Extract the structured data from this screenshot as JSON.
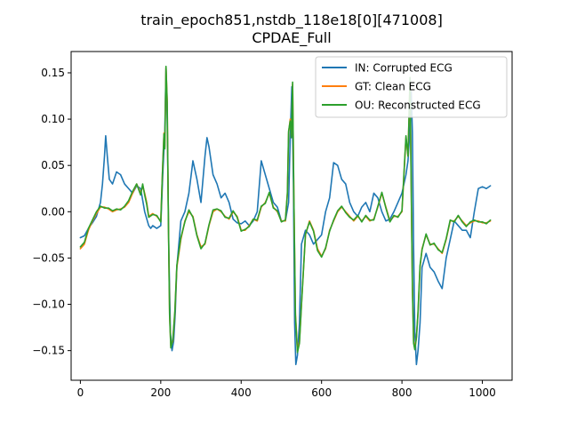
{
  "chart_data": {
    "type": "line",
    "title_line1": "train_epoch851,nstdb_118e18[0][471008]",
    "title_line2": "CPDAE_Full",
    "xlabel": "",
    "ylabel": "",
    "xlim": [
      -23,
      1074
    ],
    "ylim": [
      -0.182,
      0.173
    ],
    "x_ticks": [
      0,
      200,
      400,
      600,
      800,
      1000
    ],
    "x_tick_labels": [
      "0",
      "200",
      "400",
      "600",
      "800",
      "1000"
    ],
    "y_ticks": [
      -0.15,
      -0.1,
      -0.05,
      0.0,
      0.05,
      0.1,
      0.15
    ],
    "y_tick_labels": [
      "−0.15",
      "−0.10",
      "−0.05",
      "0.00",
      "0.05",
      "0.10",
      "0.15"
    ],
    "grid": false,
    "legend_position": "upper right",
    "series": [
      {
        "name": "IN: Corrupted ECG",
        "color": "#1f77b4",
        "x": [
          0,
          10,
          20,
          30,
          40,
          50,
          55,
          60,
          63,
          67,
          72,
          80,
          90,
          100,
          110,
          120,
          130,
          140,
          150,
          160,
          170,
          175,
          180,
          190,
          200,
          205,
          210,
          213,
          216,
          220,
          224,
          228,
          232,
          236,
          240,
          250,
          260,
          270,
          280,
          290,
          300,
          310,
          315,
          320,
          330,
          340,
          350,
          360,
          370,
          380,
          390,
          400,
          410,
          420,
          430,
          440,
          450,
          460,
          470,
          480,
          490,
          500,
          510,
          518,
          522,
          526,
          530,
          533,
          536,
          540,
          545,
          550,
          560,
          570,
          580,
          590,
          600,
          610,
          620,
          630,
          640,
          650,
          660,
          670,
          680,
          690,
          700,
          710,
          720,
          730,
          740,
          750,
          760,
          770,
          780,
          790,
          800,
          810,
          815,
          820,
          823,
          826,
          829,
          832,
          836,
          840,
          845,
          850,
          860,
          870,
          880,
          890,
          900,
          910,
          920,
          930,
          940,
          950,
          960,
          970,
          980,
          990,
          1000,
          1010,
          1020
        ],
        "y": [
          -0.028,
          -0.026,
          -0.018,
          -0.012,
          -0.005,
          0.01,
          0.03,
          0.06,
          0.082,
          0.06,
          0.035,
          0.03,
          0.043,
          0.04,
          0.03,
          0.025,
          0.02,
          0.028,
          0.025,
          0.0,
          -0.015,
          -0.018,
          -0.015,
          -0.018,
          -0.015,
          0.04,
          0.085,
          0.155,
          0.1,
          -0.04,
          -0.13,
          -0.15,
          -0.14,
          -0.11,
          -0.06,
          -0.01,
          0.0,
          0.02,
          0.055,
          0.035,
          0.01,
          0.06,
          0.08,
          0.07,
          0.04,
          0.03,
          0.015,
          0.02,
          0.01,
          -0.008,
          -0.012,
          -0.013,
          -0.01,
          -0.015,
          -0.01,
          0.0,
          0.055,
          0.04,
          0.025,
          0.01,
          0.005,
          -0.01,
          -0.01,
          0.01,
          0.08,
          0.135,
          0.03,
          -0.12,
          -0.165,
          -0.155,
          -0.12,
          -0.035,
          -0.02,
          -0.025,
          -0.035,
          -0.03,
          -0.025,
          0.0,
          0.015,
          0.053,
          0.05,
          0.035,
          0.03,
          0.01,
          0.0,
          -0.005,
          0.005,
          0.01,
          0.0,
          0.02,
          0.015,
          0.0,
          -0.01,
          -0.008,
          0.0,
          0.01,
          0.02,
          0.04,
          0.055,
          0.09,
          0.13,
          0.085,
          -0.04,
          -0.13,
          -0.165,
          -0.15,
          -0.12,
          -0.06,
          -0.045,
          -0.06,
          -0.065,
          -0.075,
          -0.083,
          -0.05,
          -0.03,
          -0.01,
          -0.015,
          -0.02,
          -0.02,
          -0.028,
          0.0,
          0.025,
          0.027,
          0.025,
          0.028
        ]
      },
      {
        "name": "GT: Clean ECG",
        "color": "#ff7f0e",
        "x": [
          0,
          10,
          20,
          30,
          40,
          50,
          60,
          70,
          80,
          90,
          100,
          110,
          120,
          130,
          140,
          150,
          155,
          160,
          165,
          170,
          180,
          190,
          200,
          204,
          208,
          210,
          213,
          216,
          219,
          222,
          225,
          230,
          235,
          240,
          250,
          260,
          270,
          280,
          290,
          300,
          310,
          320,
          330,
          340,
          350,
          360,
          370,
          380,
          390,
          400,
          410,
          420,
          430,
          440,
          450,
          460,
          470,
          480,
          490,
          500,
          510,
          515,
          518,
          522,
          525,
          528,
          531,
          535,
          540,
          545,
          550,
          560,
          570,
          580,
          590,
          600,
          610,
          620,
          630,
          640,
          650,
          660,
          670,
          680,
          690,
          700,
          710,
          720,
          730,
          740,
          750,
          760,
          770,
          780,
          790,
          800,
          810,
          815,
          820,
          823,
          826,
          829,
          832,
          836,
          840,
          845,
          850,
          860,
          870,
          880,
          890,
          900,
          910,
          920,
          930,
          940,
          950,
          960,
          970,
          980,
          990,
          1000,
          1010,
          1020
        ],
        "y": [
          -0.04,
          -0.035,
          -0.02,
          -0.01,
          -0.002,
          0.005,
          0.005,
          0.003,
          0.0,
          0.002,
          0.003,
          0.005,
          0.01,
          0.02,
          0.03,
          0.02,
          0.028,
          0.02,
          0.01,
          -0.005,
          -0.002,
          -0.005,
          -0.01,
          0.04,
          0.085,
          0.07,
          0.156,
          0.12,
          -0.01,
          -0.11,
          -0.145,
          -0.14,
          -0.11,
          -0.06,
          -0.03,
          -0.01,
          0.0,
          -0.005,
          -0.025,
          -0.038,
          -0.035,
          -0.015,
          0.0,
          0.003,
          0.0,
          -0.005,
          -0.008,
          0.0,
          -0.005,
          -0.02,
          -0.02,
          -0.015,
          -0.008,
          -0.01,
          0.005,
          0.01,
          0.02,
          0.005,
          0.0,
          -0.01,
          -0.01,
          0.02,
          0.085,
          0.1,
          0.08,
          0.138,
          0.02,
          -0.11,
          -0.15,
          -0.14,
          -0.1,
          -0.025,
          -0.01,
          -0.02,
          -0.04,
          -0.048,
          -0.04,
          -0.02,
          -0.01,
          0.0,
          0.005,
          0.0,
          -0.005,
          -0.01,
          -0.005,
          -0.01,
          -0.005,
          -0.01,
          -0.008,
          0.005,
          0.02,
          0.005,
          -0.01,
          -0.005,
          -0.005,
          0.0,
          0.08,
          0.06,
          0.14,
          0.03,
          -0.08,
          -0.14,
          -0.148,
          -0.135,
          -0.11,
          -0.06,
          -0.04,
          -0.025,
          -0.035,
          -0.035,
          -0.04,
          -0.045,
          -0.03,
          -0.01,
          -0.01,
          -0.005,
          -0.01,
          -0.015,
          -0.012,
          -0.01,
          -0.01,
          -0.012,
          -0.012,
          -0.01
        ]
      },
      {
        "name": "OU: Reconstructed ECG",
        "color": "#2ca02c",
        "x": [
          0,
          10,
          20,
          30,
          40,
          50,
          60,
          70,
          80,
          90,
          100,
          110,
          120,
          130,
          140,
          150,
          155,
          160,
          165,
          170,
          180,
          190,
          200,
          204,
          208,
          210,
          213,
          216,
          219,
          222,
          225,
          230,
          235,
          240,
          250,
          260,
          270,
          280,
          290,
          300,
          310,
          320,
          330,
          340,
          350,
          360,
          370,
          380,
          390,
          400,
          410,
          420,
          430,
          440,
          450,
          460,
          470,
          480,
          490,
          500,
          510,
          515,
          518,
          522,
          525,
          528,
          531,
          535,
          540,
          545,
          550,
          560,
          570,
          580,
          590,
          600,
          610,
          620,
          630,
          640,
          650,
          660,
          670,
          680,
          690,
          700,
          710,
          720,
          730,
          740,
          750,
          760,
          770,
          780,
          790,
          800,
          810,
          815,
          820,
          823,
          826,
          829,
          832,
          836,
          840,
          845,
          850,
          860,
          870,
          880,
          890,
          900,
          910,
          920,
          930,
          940,
          950,
          960,
          970,
          980,
          990,
          1000,
          1010,
          1020
        ],
        "y": [
          -0.038,
          -0.033,
          -0.018,
          -0.009,
          0.0,
          0.006,
          0.004,
          0.004,
          0.001,
          0.003,
          0.002,
          0.006,
          0.012,
          0.022,
          0.03,
          0.018,
          0.03,
          0.018,
          0.008,
          -0.006,
          -0.003,
          -0.004,
          -0.011,
          0.04,
          0.084,
          0.068,
          0.157,
          0.118,
          -0.012,
          -0.112,
          -0.147,
          -0.138,
          -0.108,
          -0.058,
          -0.028,
          -0.011,
          0.002,
          -0.006,
          -0.026,
          -0.04,
          -0.034,
          -0.014,
          0.002,
          0.003,
          0.001,
          -0.006,
          -0.007,
          0.001,
          -0.006,
          -0.021,
          -0.019,
          -0.016,
          -0.008,
          -0.009,
          0.006,
          0.009,
          0.021,
          0.004,
          0.001,
          -0.011,
          -0.009,
          0.02,
          0.087,
          0.098,
          0.08,
          0.14,
          0.02,
          -0.112,
          -0.152,
          -0.142,
          -0.101,
          -0.024,
          -0.011,
          -0.021,
          -0.042,
          -0.049,
          -0.039,
          -0.021,
          -0.009,
          0.001,
          0.006,
          -0.001,
          -0.006,
          -0.009,
          -0.004,
          -0.011,
          -0.004,
          -0.009,
          -0.009,
          0.006,
          0.021,
          0.004,
          -0.011,
          -0.004,
          -0.006,
          0.001,
          0.082,
          0.06,
          0.145,
          0.028,
          -0.082,
          -0.142,
          -0.149,
          -0.136,
          -0.108,
          -0.058,
          -0.041,
          -0.024,
          -0.036,
          -0.034,
          -0.041,
          -0.044,
          -0.029,
          -0.009,
          -0.011,
          -0.004,
          -0.011,
          -0.016,
          -0.011,
          -0.009,
          -0.011,
          -0.011,
          -0.013,
          -0.009
        ]
      }
    ]
  }
}
